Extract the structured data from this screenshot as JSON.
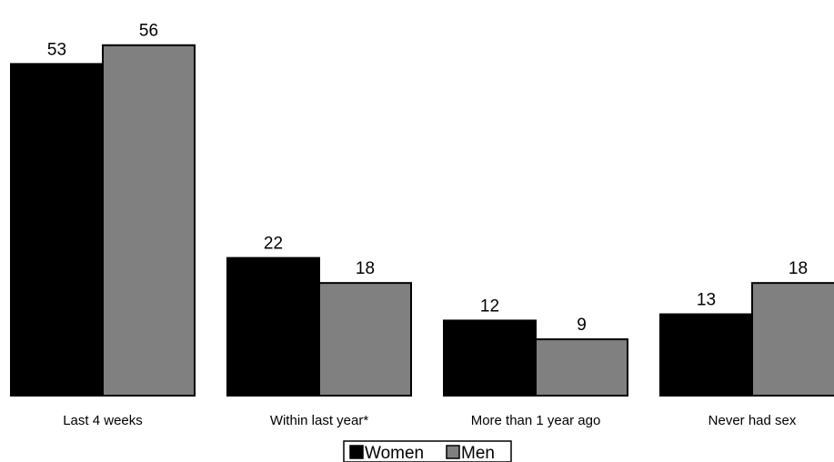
{
  "chart_data": {
    "type": "bar",
    "title": "",
    "xlabel": "",
    "ylabel": "",
    "categories": [
      "Last 4 weeks",
      "Within last year*",
      "More than 1 year ago",
      "Never had sex"
    ],
    "series": [
      {
        "name": "Women",
        "values": [
          53,
          22,
          12,
          13
        ],
        "color": "#000000"
      },
      {
        "name": "Men",
        "values": [
          56,
          18,
          9,
          18
        ],
        "color": "#808080"
      }
    ],
    "ylim": [
      0,
      60
    ],
    "grid": false,
    "legend_position": "bottom-center",
    "data_labels": true
  }
}
